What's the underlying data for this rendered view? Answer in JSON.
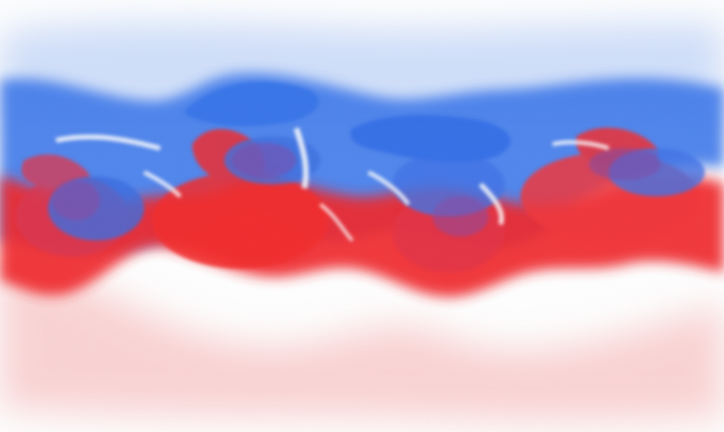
{
  "image": {
    "subject": "volume-render-mixing-layer",
    "colors": {
      "background": "#ffffff",
      "upper_fluid": "#2f6fe8",
      "upper_fluid_light": "#8fb3f5",
      "lower_fluid": "#f0282a",
      "lower_fluid_light": "#f7a3a3",
      "interface_highlight": "#ffffff"
    }
  }
}
